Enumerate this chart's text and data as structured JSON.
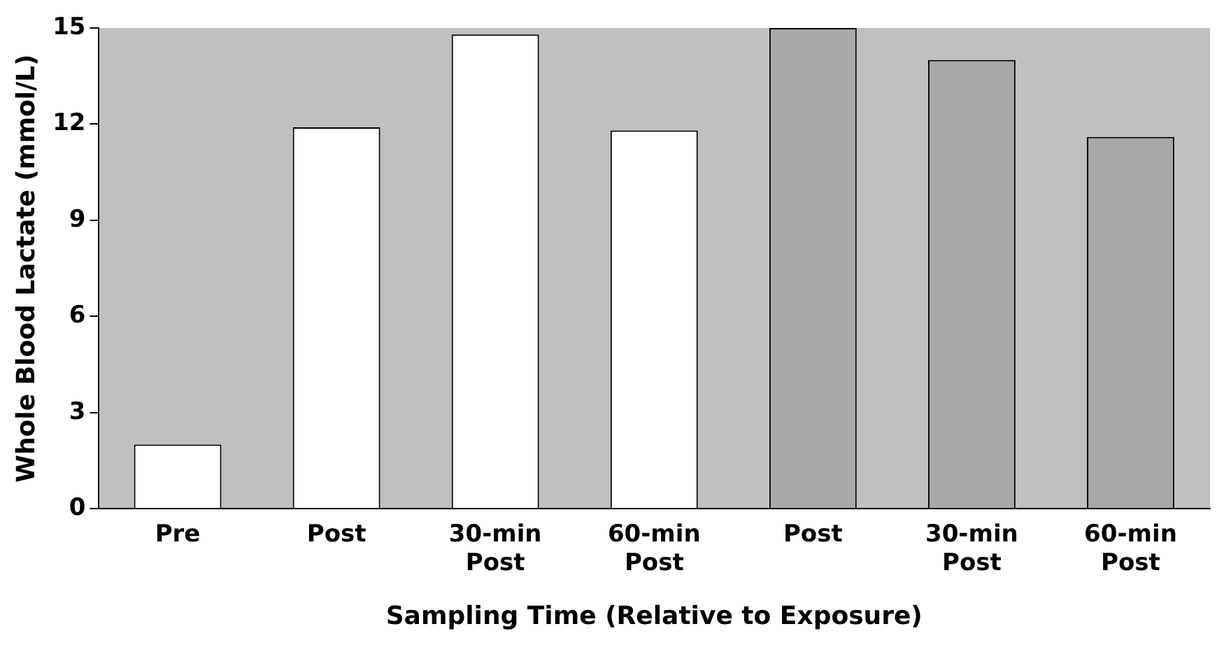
{
  "chart_data": {
    "type": "bar",
    "xlabel": "Sampling Time (Relative to Exposure)",
    "ylabel": "Whole Blood Lactate (mmol/L)",
    "categories": [
      "Pre",
      "Post",
      "30-min Post",
      "60-min Post",
      "Post",
      "30-min Post",
      "60-min Post"
    ],
    "values": [
      2.0,
      11.9,
      14.8,
      11.8,
      15.0,
      14.0,
      11.6
    ],
    "colors": [
      "#ffffff",
      "#ffffff",
      "#ffffff",
      "#ffffff",
      "#a8a8a8",
      "#a8a8a8",
      "#a8a8a8"
    ],
    "ylim": [
      0,
      15
    ],
    "yticks": [
      0,
      3,
      6,
      9,
      12,
      15
    ],
    "grid": false,
    "legend": false
  }
}
